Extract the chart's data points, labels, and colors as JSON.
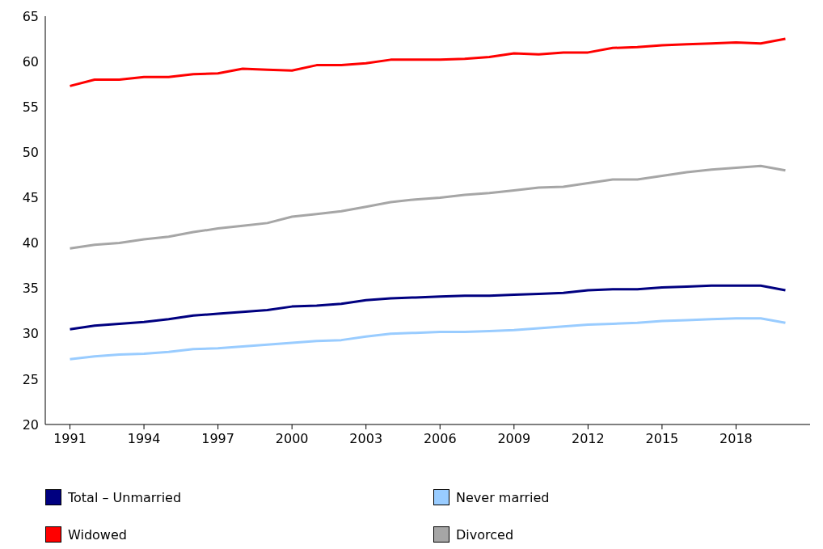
{
  "chart_data": {
    "type": "line",
    "x": [
      1991,
      1992,
      1993,
      1994,
      1995,
      1996,
      1997,
      1998,
      1999,
      2000,
      2001,
      2002,
      2003,
      2004,
      2005,
      2006,
      2007,
      2008,
      2009,
      2010,
      2011,
      2012,
      2013,
      2014,
      2015,
      2016,
      2017,
      2018,
      2019,
      2020
    ],
    "xlim": [
      1990,
      2021
    ],
    "xticks": [
      1991,
      1994,
      1997,
      2000,
      2003,
      2006,
      2009,
      2012,
      2015,
      2018
    ],
    "ylim": [
      20,
      65
    ],
    "yticks": [
      20,
      25,
      30,
      35,
      40,
      45,
      50,
      55,
      60,
      65
    ],
    "grid": false,
    "legend": "bottom",
    "marker": "none",
    "line_style": "solid",
    "series": [
      {
        "name": "Total – Unmarried",
        "color": "#000080",
        "values": [
          30.5,
          30.9,
          31.1,
          31.3,
          31.6,
          32.0,
          32.2,
          32.4,
          32.6,
          33.0,
          33.1,
          33.3,
          33.7,
          33.9,
          34.0,
          34.1,
          34.2,
          34.2,
          34.3,
          34.4,
          34.5,
          34.8,
          34.9,
          34.9,
          35.1,
          35.2,
          35.3,
          35.3,
          35.3,
          34.8
        ]
      },
      {
        "name": "Never married",
        "color": "#99ccff",
        "values": [
          27.2,
          27.5,
          27.7,
          27.8,
          28.0,
          28.3,
          28.4,
          28.6,
          28.8,
          29.0,
          29.2,
          29.3,
          29.7,
          30.0,
          30.1,
          30.2,
          30.2,
          30.3,
          30.4,
          30.6,
          30.8,
          31.0,
          31.1,
          31.2,
          31.4,
          31.5,
          31.6,
          31.7,
          31.7,
          31.2
        ]
      },
      {
        "name": "Widowed",
        "color": "#ff0000",
        "values": [
          57.3,
          58.0,
          58.0,
          58.3,
          58.3,
          58.6,
          58.7,
          59.2,
          59.1,
          59.0,
          59.6,
          59.6,
          59.8,
          60.2,
          60.2,
          60.2,
          60.3,
          60.5,
          60.9,
          60.8,
          61.0,
          61.0,
          61.5,
          61.6,
          61.8,
          61.9,
          62.0,
          62.1,
          62.0,
          62.5
        ]
      },
      {
        "name": "Divorced",
        "color": "#a6a6a6",
        "values": [
          39.4,
          39.8,
          40.0,
          40.4,
          40.7,
          41.2,
          41.6,
          41.9,
          42.2,
          42.9,
          43.2,
          43.5,
          44.0,
          44.5,
          44.8,
          45.0,
          45.3,
          45.5,
          45.8,
          46.1,
          46.2,
          46.6,
          47.0,
          47.0,
          47.4,
          47.8,
          48.1,
          48.3,
          48.5,
          48.0
        ]
      }
    ]
  }
}
